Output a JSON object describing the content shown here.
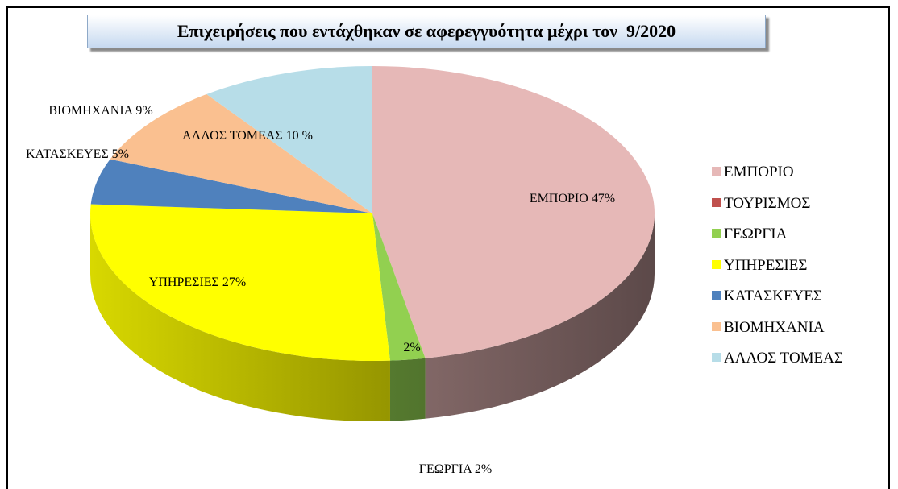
{
  "chart_data": {
    "type": "pie",
    "title": "Επιχειρήσεις που εντάχθηκαν σε αφερεγγυότητα μέχρι τον  9/2020",
    "categories": [
      "ΕΜΠΟΡΙΟ",
      "ΤΟΥΡΙΣΜΟΣ",
      "ΓΕΩΡΓΙΑ",
      "ΥΠΗΡΕΣΙΕΣ",
      "ΚΑΤΑΣΚΕΥΕΣ",
      "ΒΙΟΜΗΧΑΝΙΑ",
      "ΑΛΛΟΣ ΤΟΜΕΑΣ"
    ],
    "values": [
      47,
      0,
      2,
      27,
      5,
      9,
      10
    ],
    "value_labels": [
      "ΕΜΠΟΡΙΟ 47%",
      null,
      "ΓΕΩΡΓΙΑ 2%",
      "ΥΠΗΡΕΣΙΕΣ 27%",
      "ΚΑΤΑΣΚΕΥΕΣ 5%",
      "ΒΙΟΜΗΧΑΝΙΑ 9%",
      "ΑΛΛΟΣ ΤΟΜΕΑΣ 10 %"
    ],
    "colors": [
      "#e6b8b7",
      "#c0504d",
      "#92d050",
      "#ffff00",
      "#4f81bd",
      "#fac090",
      "#b7dde8"
    ],
    "annotations": [
      "2%"
    ],
    "legend": "right"
  }
}
